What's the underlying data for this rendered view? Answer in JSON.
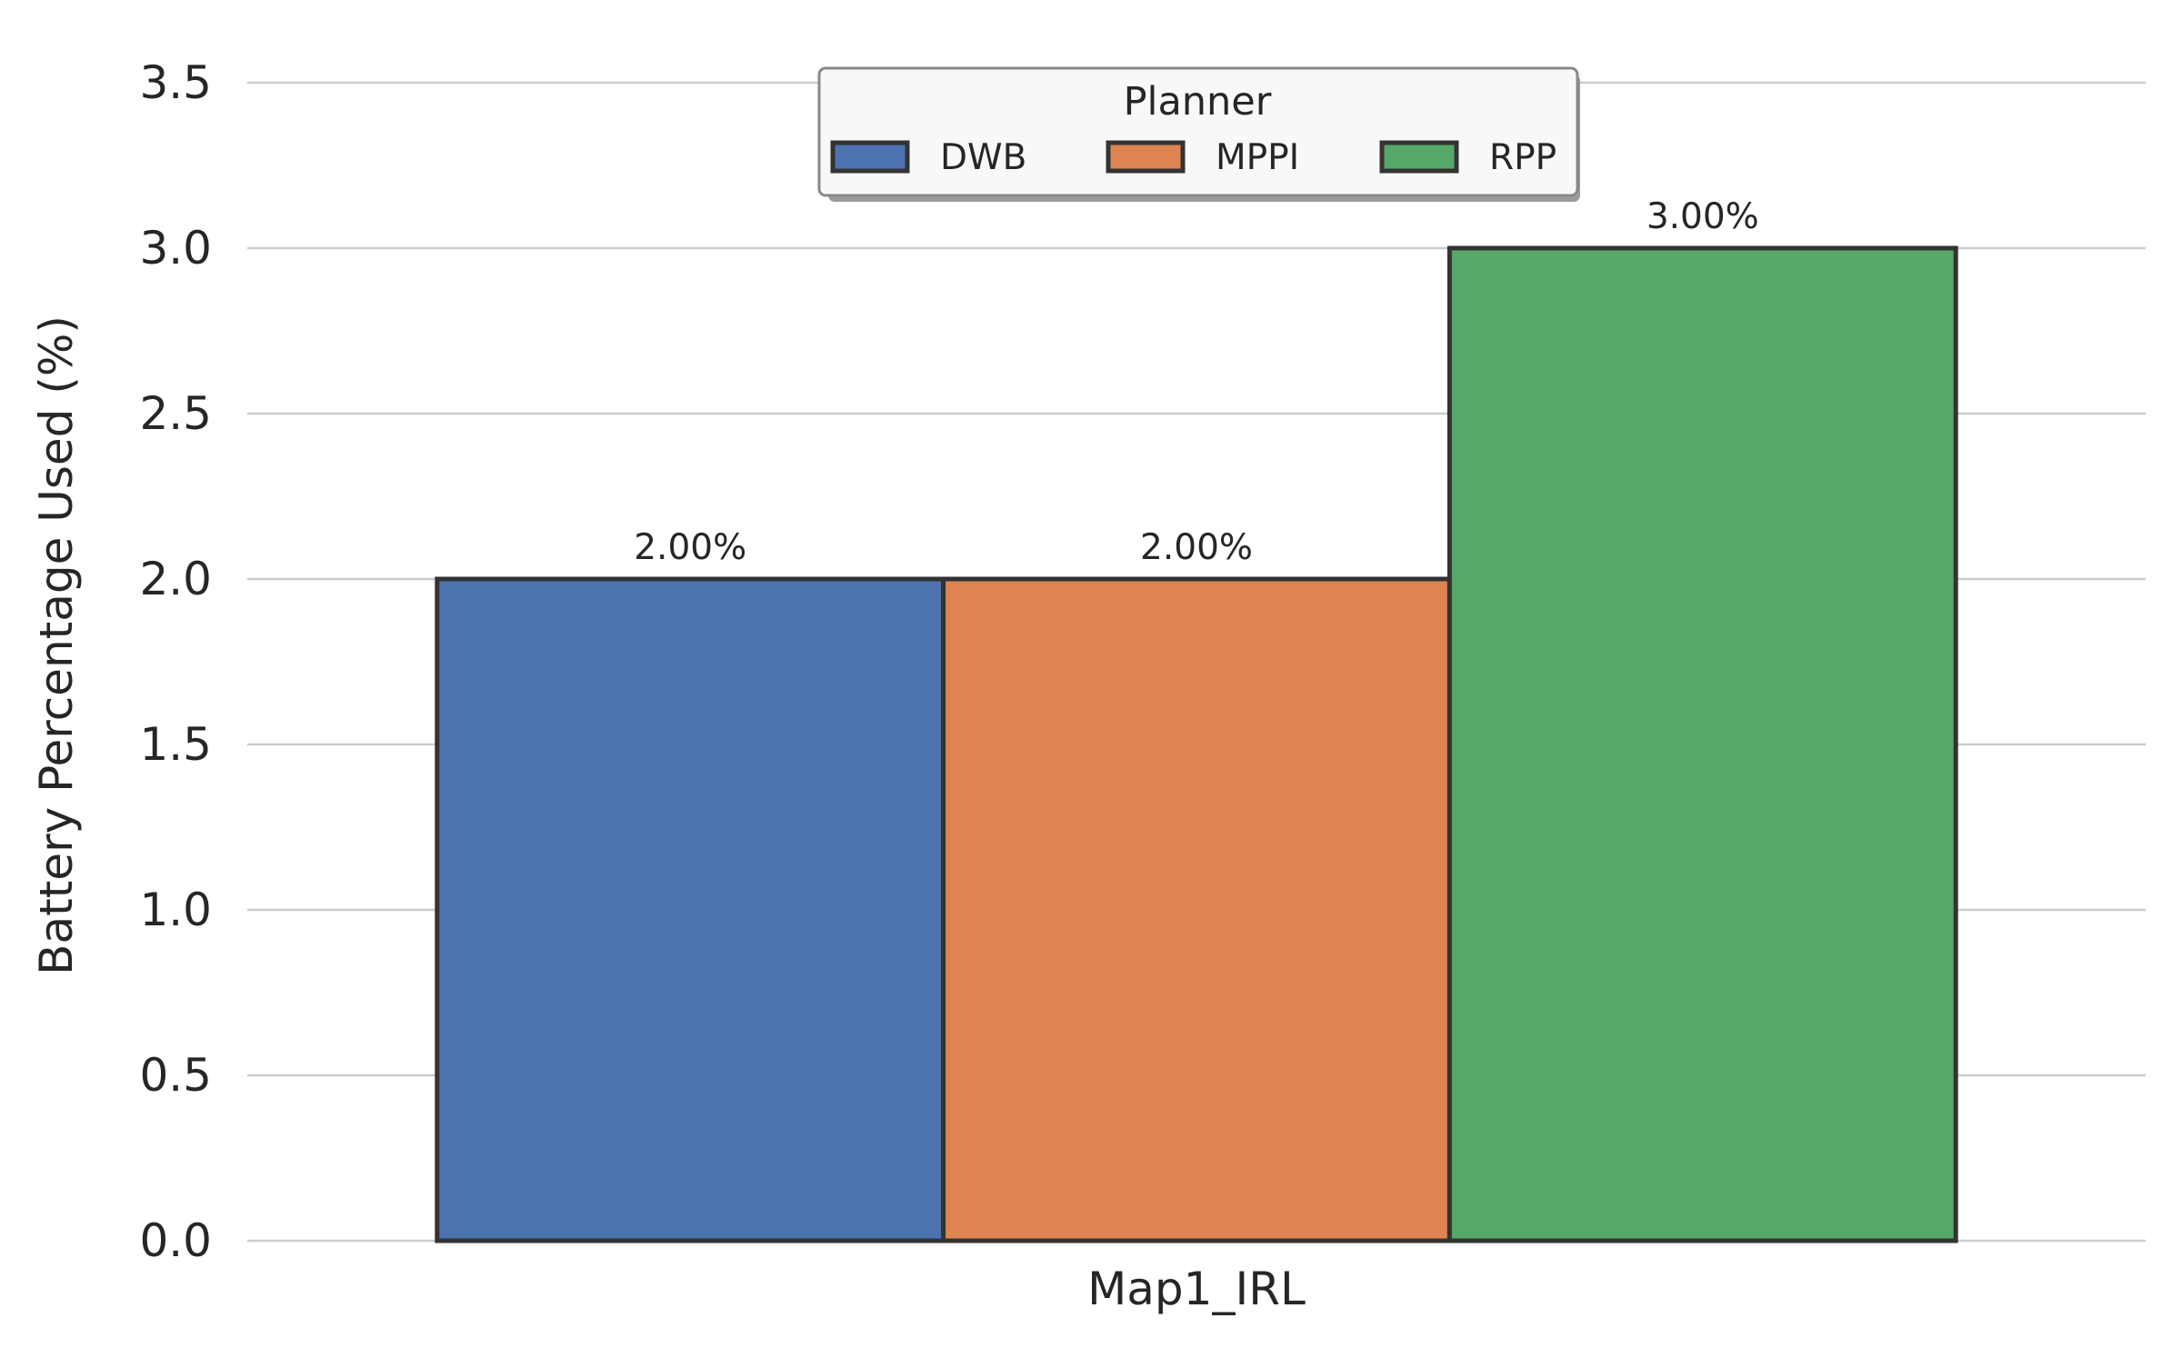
{
  "chart_data": {
    "type": "bar",
    "categories": [
      "Map1_IRL"
    ],
    "series": [
      {
        "name": "DWB",
        "values": [
          2.0
        ],
        "color": "#4c72b0",
        "label": "2.00%"
      },
      {
        "name": "MPPI",
        "values": [
          2.0
        ],
        "color": "#dd8452",
        "label": "2.00%"
      },
      {
        "name": "RPP",
        "values": [
          3.0
        ],
        "color": "#55a868",
        "label": "3.00%"
      }
    ],
    "title": "",
    "xlabel": "",
    "ylabel": "Battery Percentage Used (%)",
    "ylim": [
      0,
      3.5
    ],
    "yticks": [
      0.0,
      0.5,
      1.0,
      1.5,
      2.0,
      2.5,
      3.0,
      3.5
    ],
    "ytick_labels": [
      "0.0",
      "0.5",
      "1.0",
      "1.5",
      "2.0",
      "2.5",
      "3.0",
      "3.5"
    ],
    "grid": "horizontal",
    "legend": {
      "title": "Planner",
      "placement": "top-center",
      "columns": 3
    }
  }
}
